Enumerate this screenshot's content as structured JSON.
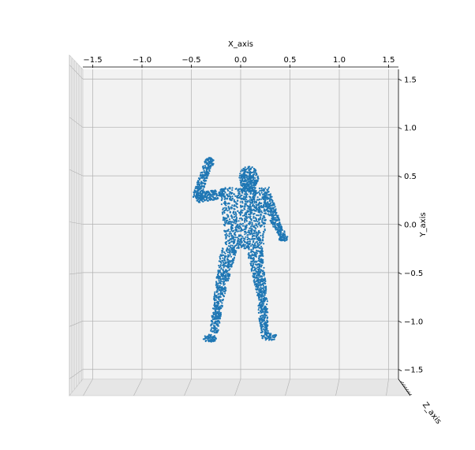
{
  "chart_data": {
    "type": "scatter",
    "projection": "3d",
    "title": "",
    "xlabel": "X_axis",
    "ylabel": "Y_axis",
    "zlabel": "Z_axis",
    "xlim": [
      -1.6,
      1.6
    ],
    "ylim": [
      -1.6,
      1.6
    ],
    "x_ticks": [
      "−1.5",
      "−1.0",
      "−0.5",
      "0.0",
      "0.5",
      "1.0",
      "1.5"
    ],
    "x_tick_values": [
      -1.5,
      -1.0,
      -0.5,
      0.0,
      0.5,
      1.0,
      1.5
    ],
    "y_ticks": [
      "1.5",
      "1.0",
      "0.5",
      "0.0",
      "−0.5",
      "−1.0",
      "−1.5"
    ],
    "y_tick_values": [
      1.5,
      1.0,
      0.5,
      0.0,
      -0.5,
      -1.0,
      -1.5
    ],
    "grid": true,
    "legend": "none",
    "marker_color": "#1f77b4",
    "pane_color": "#f2f2f2",
    "grid_color": "#b0b0b0",
    "description": "dense point cloud of a standing human body mesh with right arm raised",
    "body_parts": {
      "head": {
        "cx": 0.08,
        "cy": 0.48,
        "rx": 0.1,
        "ry": 0.12
      },
      "torso": {
        "x_range": [
          -0.22,
          0.28
        ],
        "y_range": [
          -0.25,
          0.38
        ]
      },
      "raised_arm": {
        "from": [
          -0.2,
          0.33
        ],
        "to": [
          -0.33,
          0.64
        ]
      },
      "lowered_arm": {
        "from": [
          0.28,
          0.3
        ],
        "to": [
          0.44,
          -0.12
        ]
      },
      "left_leg": {
        "from": [
          -0.1,
          -0.28
        ],
        "to": [
          -0.28,
          -1.2
        ]
      },
      "right_leg": {
        "from": [
          0.1,
          -0.28
        ],
        "to": [
          0.28,
          -1.18
        ]
      }
    }
  }
}
